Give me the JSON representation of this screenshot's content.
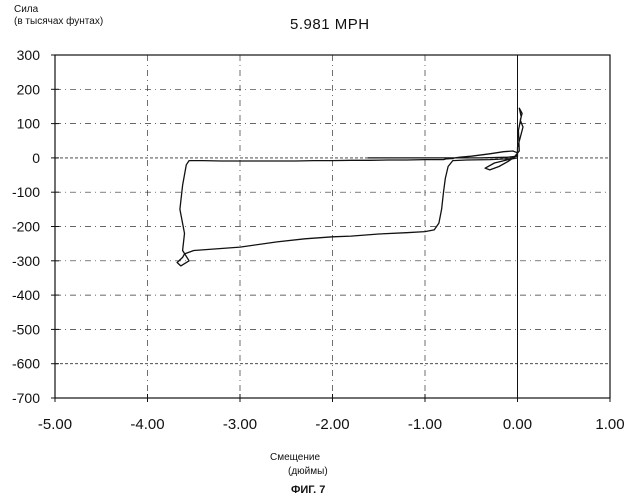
{
  "chart_data": {
    "type": "line",
    "title": "5.981 MPH",
    "ylabel_line1": "Сила",
    "ylabel_line2": "(в тысячах фунтах)",
    "xlabel_line1": "Смещение",
    "xlabel_line2": "(дюймы)",
    "caption": "ФИГ. 7",
    "xlim": [
      -5.0,
      1.0
    ],
    "ylim": [
      -700,
      300
    ],
    "xticks": [
      -5,
      -4,
      -3,
      -2,
      -1,
      0,
      1
    ],
    "xtick_labels": [
      "-5.00",
      "-4.00",
      "-3.00",
      "-2.00",
      "-1.00",
      "0.00",
      "1.00"
    ],
    "yticks": [
      300,
      200,
      100,
      0,
      -100,
      -200,
      -300,
      -400,
      -500,
      -600,
      -700
    ],
    "ytick_labels": [
      "300",
      "200",
      "100",
      "0",
      "-100",
      "-200",
      "-300",
      "-400",
      "-500",
      "-600",
      "-700"
    ],
    "grid": "dashed",
    "series": [
      {
        "x": [
          -1.62,
          -0.4,
          -0.1,
          0.0,
          0.0,
          0.03,
          0.06,
          0.03,
          0.05,
          0.02,
          0.04,
          0.01,
          0.02,
          -0.05,
          -0.3,
          -0.55,
          -0.7,
          -0.75,
          -0.78,
          -0.8,
          -0.82,
          -0.85,
          -0.9,
          -1.0,
          -1.2,
          -1.5,
          -1.8,
          -2.0,
          -2.3,
          -2.6,
          -3.0,
          -3.5,
          -3.6,
          -3.62,
          -3.68,
          -3.64,
          -3.55,
          -3.62,
          -3.6,
          -3.65,
          -3.62,
          -3.58,
          -3.55,
          -3.4,
          -3.2,
          -3.0,
          -2.8,
          -2.6,
          -2.4,
          -2.2,
          -2.0,
          -1.8,
          -1.6,
          -1.4,
          -1.2,
          -1.0,
          -0.9,
          -0.8,
          -0.77,
          -0.78,
          -0.76,
          -0.72,
          -0.7,
          -0.68,
          -0.62,
          -0.5,
          -0.3,
          -0.15,
          -0.05,
          0.0,
          -0.02,
          -0.1,
          -0.2,
          -0.3,
          -0.35,
          -0.25,
          -0.1,
          0.0
        ],
        "y": [
          0,
          0,
          2,
          5,
          30,
          60,
          90,
          110,
          130,
          145,
          120,
          80,
          20,
          -2,
          -5,
          -6,
          -8,
          -25,
          -60,
          -100,
          -150,
          -190,
          -210,
          -215,
          -218,
          -222,
          -228,
          -230,
          -236,
          -245,
          -260,
          -270,
          -280,
          -290,
          -305,
          -315,
          -300,
          -270,
          -220,
          -150,
          -80,
          -20,
          -8,
          -8,
          -9,
          -9,
          -9,
          -9,
          -9,
          -8,
          -8,
          -7,
          -7,
          -6,
          -6,
          -5,
          -5,
          -5,
          -3,
          -1,
          -3,
          -2,
          -2,
          0,
          2,
          5,
          12,
          18,
          20,
          15,
          5,
          -10,
          -25,
          -35,
          -30,
          -15,
          -5,
          0
        ]
      }
    ]
  }
}
